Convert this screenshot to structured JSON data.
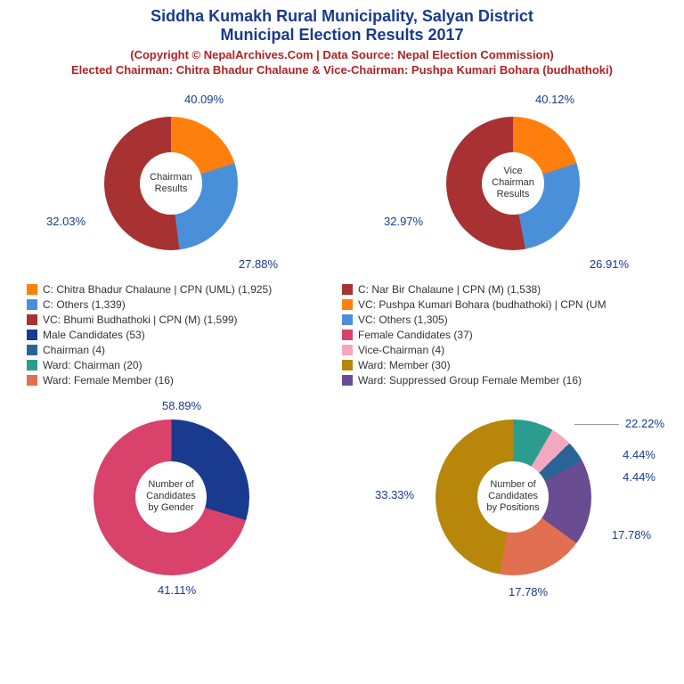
{
  "header": {
    "title_line1": "Siddha Kumakh Rural Municipality, Salyan District",
    "title_line2": "Municipal Election Results 2017",
    "copyright": "(Copyright © NepalArchives.Com | Data Source: Nepal Election Commission)",
    "elected": "Elected Chairman: Chitra Bhadur Chalaune & Vice-Chairman: Pushpa Kumari Bohara (budhathoki)",
    "title_color": "#1a3a8f",
    "sub_color": "#b22222"
  },
  "chart1": {
    "center": "Chairman\nResults",
    "slices": [
      {
        "pct": 40.09,
        "color": "#ff7f0e",
        "label_pos": "top"
      },
      {
        "pct": 27.88,
        "color": "#4a90d9",
        "label_pos": "bottom-right"
      },
      {
        "pct": 32.03,
        "color": "#a83232",
        "label_pos": "left"
      }
    ]
  },
  "chart2": {
    "center": "Vice\nChairman\nResults",
    "slices": [
      {
        "pct": 40.12,
        "color": "#ff7f0e",
        "label_pos": "top"
      },
      {
        "pct": 26.91,
        "color": "#4a90d9",
        "label_pos": "bottom-right"
      },
      {
        "pct": 32.97,
        "color": "#a83232",
        "label_pos": "left"
      }
    ]
  },
  "legend": [
    {
      "color": "#ff7f0e",
      "text": "C: Chitra Bhadur Chalaune | CPN (UML) (1,925)"
    },
    {
      "color": "#a83232",
      "text": "C: Nar Bir Chalaune | CPN (M) (1,538)"
    },
    {
      "color": "#4a90d9",
      "text": "C: Others (1,339)"
    },
    {
      "color": "#ff7f0e",
      "text": "VC: Pushpa Kumari Bohara (budhathoki) | CPN (UM"
    },
    {
      "color": "#a83232",
      "text": "VC: Bhumi Budhathoki | CPN (M) (1,599)"
    },
    {
      "color": "#4a90d9",
      "text": "VC: Others (1,305)"
    },
    {
      "color": "#1a3a8f",
      "text": "Male Candidates (53)"
    },
    {
      "color": "#d9426a",
      "text": "Female Candidates (37)"
    },
    {
      "color": "#2a6496",
      "text": "Chairman (4)"
    },
    {
      "color": "#f4a7c0",
      "text": "Vice-Chairman (4)"
    },
    {
      "color": "#2a9d8f",
      "text": "Ward: Chairman (20)"
    },
    {
      "color": "#b8860b",
      "text": "Ward: Member (30)"
    },
    {
      "color": "#e07050",
      "text": "Ward: Female Member (16)"
    },
    {
      "color": "#6a4c93",
      "text": "Ward: Suppressed Group Female Member (16)"
    }
  ],
  "chart3": {
    "center": "Number of\nCandidates\nby Gender",
    "slices": [
      {
        "pct": 58.89,
        "color": "#1a3a8f",
        "label_pos": "top"
      },
      {
        "pct": 41.11,
        "color": "#d9426a",
        "label_pos": "bottom"
      }
    ]
  },
  "chart4": {
    "center": "Number of\nCandidates\nby Positions",
    "slices": [
      {
        "pct": 22.22,
        "color": "#2a9d8f"
      },
      {
        "pct": 4.44,
        "color": "#f4a7c0"
      },
      {
        "pct": 4.44,
        "color": "#2a6496"
      },
      {
        "pct": 17.78,
        "color": "#6a4c93"
      },
      {
        "pct": 17.78,
        "color": "#e07050"
      },
      {
        "pct": 33.33,
        "color": "#b8860b"
      }
    ],
    "labels": {
      "tr": "22.22%",
      "r1": "4.44%",
      "r2": "4.44%",
      "br": "17.78%",
      "b": "17.78%",
      "l": "33.33%"
    }
  }
}
